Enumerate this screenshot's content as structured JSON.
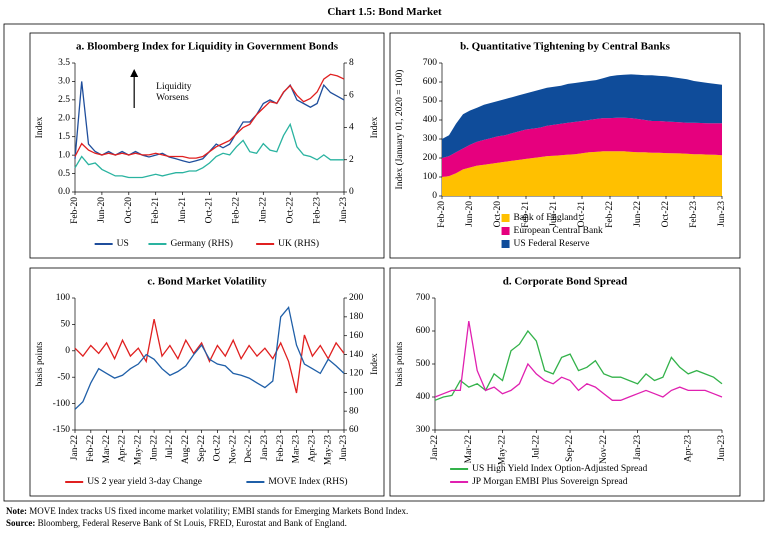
{
  "title": "Chart 1.5: Bond Market",
  "chart_data": [
    {
      "type": "line",
      "title": "a. Bloomberg Index for Liquidity in Government Bonds",
      "ylabel": "Index",
      "y2label": "Index",
      "categories": [
        "Feb-20",
        null,
        null,
        null,
        "Jun-20",
        null,
        null,
        null,
        "Oct-20",
        null,
        null,
        null,
        "Feb-21",
        null,
        null,
        null,
        "Jun-21",
        null,
        null,
        null,
        "Oct-21",
        null,
        null,
        null,
        "Feb-22",
        null,
        null,
        null,
        "Jun-22",
        null,
        null,
        null,
        "Oct-22",
        null,
        null,
        null,
        "Feb-23",
        null,
        null,
        null,
        "Jun-23"
      ],
      "ylim": [
        0,
        3.5
      ],
      "yticks": [
        {
          "value": 0,
          "label": "0.0"
        },
        {
          "value": 0.5,
          "label": "0.5"
        },
        {
          "value": 1,
          "label": "1.0"
        },
        {
          "value": 1.5,
          "label": "1.5"
        },
        {
          "value": 2,
          "label": "2.0"
        },
        {
          "value": 2.5,
          "label": "2.5"
        },
        {
          "value": 3,
          "label": "3.0"
        },
        {
          "value": 3.5,
          "label": "3.5"
        }
      ],
      "y2lim": [
        0,
        8
      ],
      "y2ticks": [
        0,
        2,
        4,
        6,
        8
      ],
      "legend": "bottom",
      "annotation_lines": [
        "Liquidity",
        "Worsens"
      ],
      "series": [
        {
          "name": "US",
          "color": "#1f4e9c",
          "values": [
            0.9,
            3.0,
            1.3,
            1.1,
            1.0,
            1.1,
            1.0,
            1.1,
            1.0,
            1.1,
            1.0,
            0.95,
            1.0,
            1.05,
            0.95,
            0.9,
            0.85,
            0.8,
            0.85,
            0.9,
            1.1,
            1.3,
            1.2,
            1.3,
            1.6,
            1.9,
            1.9,
            2.1,
            2.4,
            2.5,
            2.4,
            2.7,
            2.9,
            2.5,
            2.4,
            2.3,
            2.4,
            2.9,
            2.7,
            2.6,
            2.5
          ]
        },
        {
          "name": "Germany (RHS)",
          "color": "#2ab3a0",
          "axis": "y2",
          "values": [
            1.5,
            2.2,
            1.7,
            1.8,
            1.4,
            1.2,
            1.0,
            1.0,
            0.9,
            0.9,
            0.9,
            1.0,
            1.1,
            1.0,
            1.1,
            1.2,
            1.2,
            1.3,
            1.3,
            1.5,
            1.8,
            2.2,
            2.4,
            2.3,
            2.8,
            3.2,
            2.5,
            2.4,
            3.0,
            2.6,
            2.5,
            3.5,
            4.2,
            2.8,
            2.3,
            2.2,
            2.0,
            2.3,
            2.0,
            2.0,
            2.0
          ]
        },
        {
          "name": "UK (RHS)",
          "color": "#e02020",
          "axis": "y2",
          "values": [
            2.2,
            3.0,
            2.6,
            2.4,
            2.3,
            2.4,
            2.3,
            2.4,
            2.3,
            2.4,
            2.3,
            2.3,
            2.4,
            2.3,
            2.2,
            2.2,
            2.2,
            2.1,
            2.1,
            2.2,
            2.5,
            2.8,
            3.0,
            3.2,
            3.6,
            4.0,
            4.2,
            4.8,
            5.2,
            5.6,
            5.5,
            6.2,
            6.6,
            6.0,
            5.6,
            5.8,
            6.2,
            7.0,
            7.3,
            7.2,
            7.0
          ]
        }
      ]
    },
    {
      "type": "area",
      "title": "b. Quantitative Tightening by Central Banks",
      "ylabel": "Index (January 01, 2020 = 100)",
      "categories": [
        "Feb-20",
        null,
        null,
        null,
        "Jun-20",
        null,
        null,
        null,
        "Oct-20",
        null,
        null,
        null,
        "Feb-21",
        null,
        null,
        null,
        "Jun-21",
        null,
        null,
        null,
        "Oct-21",
        null,
        null,
        null,
        "Feb-22",
        null,
        null,
        null,
        "Jun-22",
        null,
        null,
        null,
        "Oct-22",
        null,
        null,
        null,
        "Feb-23",
        null,
        null,
        null,
        "Jun-23"
      ],
      "ylim": [
        0,
        700
      ],
      "yticks": [
        0,
        100,
        200,
        300,
        400,
        500,
        600,
        700
      ],
      "legend": "bottom",
      "series": [
        {
          "name": "Bank of England",
          "color": "#ffc000",
          "values": [
            100,
            105,
            120,
            140,
            150,
            160,
            165,
            170,
            175,
            180,
            185,
            190,
            195,
            200,
            205,
            210,
            212,
            215,
            218,
            220,
            225,
            230,
            232,
            235,
            235,
            235,
            235,
            232,
            230,
            230,
            228,
            228,
            226,
            225,
            224,
            222,
            220,
            220,
            218,
            217,
            215
          ]
        },
        {
          "name": "European Central Bank",
          "color": "#e6007e",
          "values": [
            100,
            105,
            110,
            110,
            120,
            125,
            130,
            135,
            140,
            140,
            145,
            150,
            155,
            155,
            155,
            160,
            163,
            165,
            167,
            170,
            170,
            170,
            173,
            175,
            175,
            177,
            177,
            178,
            175,
            170,
            167,
            167,
            166,
            165,
            164,
            163,
            165,
            164,
            165,
            166,
            168
          ]
        },
        {
          "name": "US Federal Reserve",
          "color": "#0f4c9a",
          "values": [
            100,
            110,
            150,
            180,
            180,
            180,
            185,
            185,
            185,
            190,
            190,
            190,
            190,
            195,
            200,
            200,
            200,
            200,
            205,
            205,
            205,
            205,
            205,
            210,
            220,
            223,
            226,
            230,
            233,
            236,
            240,
            237,
            238,
            235,
            232,
            230,
            220,
            216,
            212,
            207,
            202
          ]
        }
      ]
    },
    {
      "type": "line",
      "title": "c. Bond Market Volatility",
      "ylabel": "basis points",
      "y2label": "Index",
      "categories": [
        "Jan-22",
        null,
        "Feb-22",
        null,
        "Mar-22",
        null,
        "Apr-22",
        null,
        "May-22",
        null,
        "Jun-22",
        null,
        "Jul-22",
        null,
        "Aug-22",
        null,
        "Sep-22",
        null,
        "Oct-22",
        null,
        "Nov-22",
        null,
        "Dec-22",
        null,
        "Jan-23",
        null,
        "Feb-23",
        null,
        "Mar-23",
        null,
        "Apr-23",
        null,
        "May-23",
        null,
        "Jun-23"
      ],
      "ylim": [
        -150,
        100
      ],
      "yticks": [
        -150,
        -100,
        -50,
        0,
        50,
        100
      ],
      "y2lim": [
        60,
        200
      ],
      "y2ticks": [
        60,
        80,
        100,
        120,
        140,
        160,
        180,
        200
      ],
      "legend": "bottom",
      "series": [
        {
          "name": "US 2 year yield 3-day Change",
          "color": "#e02020",
          "values": [
            5,
            -10,
            10,
            -5,
            15,
            -15,
            20,
            -10,
            5,
            -20,
            60,
            -10,
            10,
            -15,
            20,
            -5,
            15,
            -20,
            10,
            -10,
            20,
            -15,
            10,
            -10,
            5,
            -15,
            15,
            -20,
            -80,
            30,
            -10,
            10,
            -15,
            15,
            -5
          ]
        },
        {
          "name": "MOVE Index (RHS)",
          "color": "#1f5fa8",
          "axis": "y2",
          "values": [
            82,
            90,
            110,
            125,
            120,
            115,
            118,
            125,
            130,
            140,
            135,
            125,
            118,
            122,
            128,
            140,
            150,
            135,
            130,
            128,
            120,
            118,
            115,
            110,
            105,
            112,
            180,
            190,
            150,
            130,
            125,
            120,
            135,
            128,
            120
          ]
        }
      ]
    },
    {
      "type": "line",
      "title": "d. Corporate Bond Spread",
      "ylabel": "basis points",
      "categories": [
        "Jan-22",
        null,
        null,
        null,
        "Mar-22",
        null,
        null,
        null,
        "May-22",
        null,
        null,
        null,
        "Jul-22",
        null,
        null,
        null,
        "Sep-22",
        null,
        null,
        null,
        "Nov-22",
        null,
        null,
        null,
        "Jan-23",
        null,
        null,
        null,
        null,
        null,
        "Apr-23",
        null,
        null,
        null,
        "Jun-23"
      ],
      "ylim": [
        300,
        700
      ],
      "yticks": [
        300,
        400,
        500,
        600,
        700
      ],
      "legend": "bottom",
      "series": [
        {
          "name": "US High Yield Index Option-Adjusted Spread",
          "color": "#33b24a",
          "values": [
            390,
            400,
            405,
            450,
            430,
            440,
            420,
            470,
            450,
            540,
            560,
            600,
            570,
            480,
            470,
            520,
            530,
            480,
            490,
            510,
            470,
            460,
            460,
            450,
            440,
            470,
            450,
            460,
            520,
            490,
            470,
            480,
            470,
            460,
            440
          ]
        },
        {
          "name": "JP Morgan EMBI Plus Sovereign Spread",
          "color": "#e020b0",
          "values": [
            400,
            410,
            420,
            420,
            630,
            480,
            420,
            430,
            410,
            420,
            440,
            500,
            470,
            450,
            440,
            460,
            450,
            420,
            440,
            430,
            410,
            390,
            390,
            400,
            410,
            420,
            410,
            400,
            420,
            430,
            420,
            420,
            420,
            410,
            400
          ]
        }
      ]
    }
  ],
  "notes": {
    "note_label": "Note:",
    "note": "MOVE Index tracks US fixed income market volatility; EMBI stands for Emerging Markets Bond Index.",
    "source_label": "Source:",
    "source": "Bloomberg, Federal Reserve Bank of St Louis, FRED, Eurostat and Bank of England."
  }
}
